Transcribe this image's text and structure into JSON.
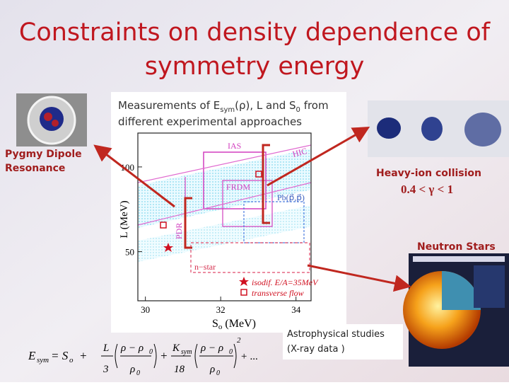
{
  "slide": {
    "title": [
      "Constraints on density dependence of",
      "symmetry energy"
    ],
    "caption": {
      "line1": [
        "Measurements of E",
        "sym",
        "(ρ), L and S",
        "0",
        " from"
      ],
      "line2": "different experimental approaches"
    },
    "pygmy_label": [
      "Pygmy Dipole",
      "Resonance"
    ],
    "heavy_ion_label": "Heavy-ion collision",
    "gamma_range": "0.4 < γ < 1",
    "neutron_stars_label": "Neutron Stars",
    "astro_label": [
      "Astrophysical studies",
      "(X-ray data )"
    ],
    "plot": {
      "xlabel": [
        "S",
        "o",
        " (MeV)"
      ],
      "ylabel": "L (MeV)",
      "xlim": [
        29.8,
        34.4
      ],
      "ylim": [
        21,
        120
      ],
      "xticks": [
        30,
        32,
        34
      ],
      "yticks": [
        50,
        100
      ],
      "regions": {
        "ias": "IAS",
        "hic": "HIC",
        "frdm": "FRDM",
        "pb": "Pb(p⃗,p⃗)",
        "pdr": "PDR",
        "nstar": "n−star"
      },
      "legend": [
        "isodif. E/A=35MeV",
        "transverse flow"
      ]
    },
    "formula": [
      "E",
      "sym",
      "= S",
      "o",
      "+",
      "L",
      "3",
      "ρ − ρ",
      "0",
      "ρ",
      "0",
      "+",
      "K",
      "sym",
      "18",
      "ρ − ρ",
      "0",
      "ρ",
      "0",
      "2",
      "+ ..."
    ]
  }
}
